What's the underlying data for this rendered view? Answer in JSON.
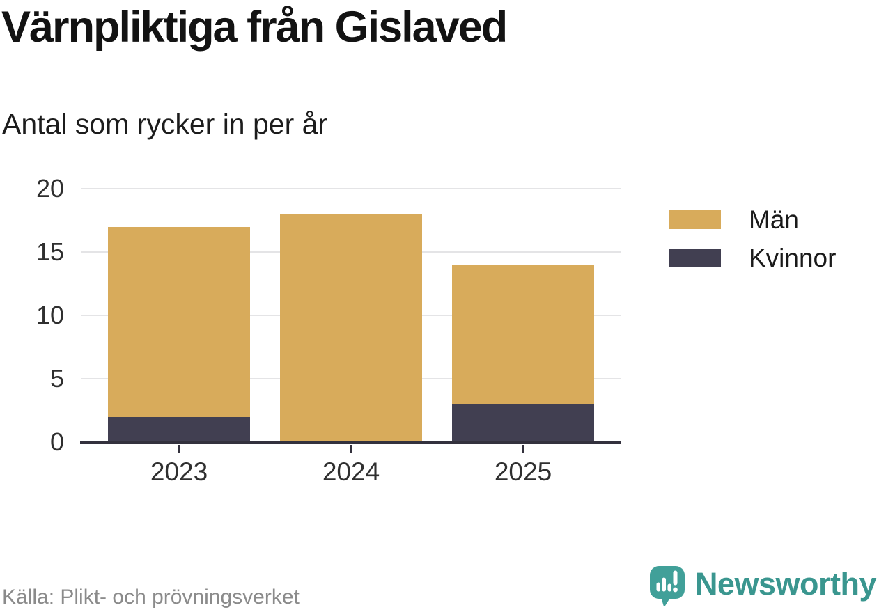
{
  "chart_data": {
    "type": "bar",
    "stacked": true,
    "title": "Värnpliktiga från Gislaved",
    "subtitle": "Antal som rycker in per år",
    "categories": [
      "2023",
      "2024",
      "2025"
    ],
    "series": [
      {
        "name": "Män",
        "color": "#d8ab5b",
        "values": [
          15,
          18,
          11
        ]
      },
      {
        "name": "Kvinnor",
        "color": "#413f51",
        "values": [
          2,
          0,
          3
        ]
      }
    ],
    "ylim": [
      0,
      20
    ],
    "yticks": [
      0,
      5,
      10,
      15,
      20
    ],
    "grid": "horizontal",
    "legend_position": "right",
    "source": "Källa: Plikt- och prövningsverket"
  },
  "branding": {
    "logo_text": "Newsworthy",
    "logo_icon": "newsworthy-speech-bubble-bar-chart-icon",
    "logo_text_color": "#3a968f",
    "logo_icon_color": "#41a099"
  },
  "colors": {
    "background": "#ffffff",
    "title_text": "#131313",
    "subtitle_text": "#1c1c1c",
    "tick_label": "#2f2f2f",
    "gridline": "#e4e4e6",
    "axis": "#33313d",
    "source_text": "#8b8b8b"
  }
}
